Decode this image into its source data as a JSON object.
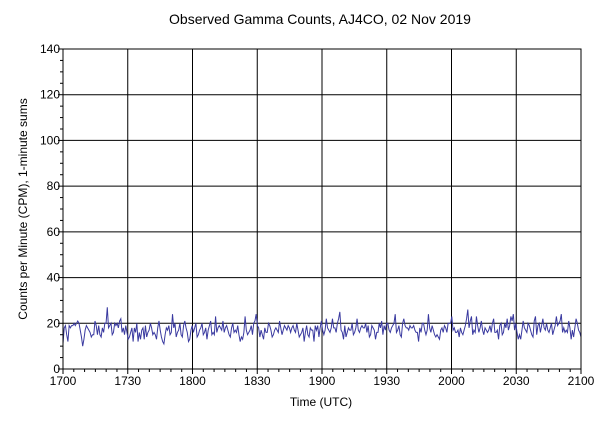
{
  "chart_data": {
    "type": "line",
    "title": "Observed Gamma Counts, AJ4CO, 02 Nov 2019",
    "xlabel": "Time (UTC)",
    "ylabel": "Counts per Minute (CPM), 1-minute sums",
    "xlim": [
      "1700",
      "2100"
    ],
    "ylim": [
      0,
      140
    ],
    "x_ticks": [
      "1700",
      "1730",
      "1800",
      "1830",
      "1900",
      "1930",
      "2000",
      "2030",
      "2100"
    ],
    "y_ticks": [
      0,
      20,
      40,
      60,
      80,
      100,
      120,
      140
    ],
    "grid": true,
    "line_color": "#3a3aa0",
    "x_start": "1700",
    "x_step_minutes": 1,
    "series": [
      {
        "values": [
          11,
          18,
          19,
          15,
          12,
          19,
          18,
          19,
          19,
          20,
          19,
          20,
          21,
          20,
          17,
          14,
          10,
          13,
          17,
          19,
          18,
          17,
          16,
          14,
          15,
          15,
          21,
          19,
          15,
          19,
          15,
          14,
          18,
          16,
          20,
          20,
          27,
          18,
          19,
          20,
          15,
          16,
          20,
          19,
          20,
          18,
          21,
          22,
          16,
          18,
          15,
          19,
          16,
          13,
          14,
          16,
          18,
          12,
          18,
          16,
          20,
          12,
          16,
          13,
          17,
          18,
          13,
          19,
          14,
          16,
          17,
          20,
          18,
          15,
          16,
          15,
          13,
          18,
          21,
          17,
          14,
          12,
          11,
          15,
          18,
          17,
          19,
          15,
          16,
          24,
          18,
          20,
          14,
          16,
          17,
          20,
          15,
          14,
          19,
          21,
          18,
          16,
          12,
          13,
          17,
          19,
          16,
          18,
          20,
          14,
          15,
          17,
          18,
          20,
          15,
          16,
          18,
          13,
          17,
          19,
          21,
          15,
          16,
          15,
          23,
          16,
          18,
          19,
          18,
          17,
          21,
          16,
          18,
          19,
          17,
          15,
          14,
          18,
          20,
          16,
          17,
          16,
          19,
          15,
          12,
          14,
          13,
          16,
          23,
          17,
          15,
          16,
          17,
          19,
          15,
          20,
          21,
          24,
          19,
          18,
          14,
          17,
          15,
          13,
          18,
          16,
          16,
          20,
          19,
          17,
          14,
          15,
          17,
          18,
          17,
          16,
          21,
          18,
          15,
          17,
          19,
          18,
          17,
          19,
          18,
          16,
          18,
          19,
          17,
          16,
          20,
          17,
          14,
          15,
          16,
          18,
          12,
          16,
          19,
          15,
          14,
          18,
          17,
          17,
          12,
          19,
          17,
          19,
          14,
          18,
          21,
          17,
          15,
          17,
          22,
          18,
          17,
          16,
          18,
          22,
          18,
          18,
          16,
          20,
          22,
          25,
          17,
          16,
          13,
          19,
          14,
          16,
          18,
          17,
          17,
          20,
          15,
          16,
          18,
          22,
          17,
          16,
          18,
          19,
          18,
          18,
          20,
          16,
          19,
          14,
          15,
          19,
          18,
          17,
          13,
          16,
          16,
          20,
          18,
          21,
          15,
          19,
          17,
          20,
          20,
          17,
          16,
          18,
          19,
          20,
          24,
          16,
          17,
          19,
          15,
          14,
          20,
          22,
          19,
          18,
          18,
          17,
          19,
          18,
          18,
          19,
          17,
          16,
          16,
          12,
          18,
          16,
          20,
          20,
          17,
          15,
          17,
          24,
          18,
          16,
          19,
          17,
          15,
          14,
          15,
          14,
          13,
          17,
          18,
          16,
          19,
          18,
          16,
          20,
          20,
          20,
          23,
          17,
          18,
          16,
          16,
          17,
          14,
          18,
          16,
          15,
          17,
          19,
          22,
          26,
          18,
          21,
          23,
          15,
          17,
          16,
          23,
          19,
          16,
          18,
          21,
          17,
          15,
          18,
          17,
          16,
          17,
          19,
          16,
          20,
          22,
          16,
          16,
          17,
          13,
          19,
          20,
          15,
          16,
          20,
          18,
          22,
          17,
          19,
          23,
          21,
          24,
          17,
          20,
          16,
          13,
          15,
          13,
          17,
          21,
          18,
          17,
          16,
          20,
          19,
          17,
          15,
          14,
          21,
          23,
          15,
          19,
          20,
          16,
          19,
          22,
          18,
          17,
          20,
          17,
          16,
          18,
          20,
          15,
          17,
          19,
          23,
          19,
          20,
          21,
          24,
          16,
          18,
          16,
          17,
          16,
          21,
          18,
          13,
          17,
          14,
          18,
          22,
          20,
          17,
          16,
          14
        ]
      }
    ]
  }
}
